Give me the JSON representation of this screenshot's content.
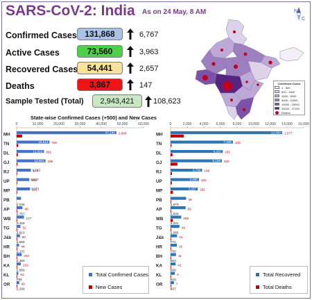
{
  "header": {
    "title": "SARS-CoV-2: India",
    "as_of": "As on 24 May, 8 AM",
    "compass_letters": [
      "N",
      "C"
    ]
  },
  "stats": [
    {
      "label": "Confirmed Cases",
      "value": "131,868",
      "new": "6,767",
      "color": "#a9c3e8"
    },
    {
      "label": "Active Cases",
      "value": "73,560",
      "new": "3,963",
      "color": "#4fd04a"
    },
    {
      "label": "Recovered Cases",
      "value": "54,441",
      "new": "2,657",
      "color": "#f9e29a"
    },
    {
      "label": "Deaths",
      "value": "3,867",
      "new": "147",
      "color": "#f01414"
    }
  ],
  "sample": {
    "label": "Sample Tested (Total)",
    "value": "2,943,421",
    "new": "108,623"
  },
  "section_title": "State-wise Confirmed Cases (+500) and New Cases",
  "map_legend": {
    "title": "Confirmed Cases",
    "items": [
      {
        "label": "1 - 500",
        "color": "#f3eef8"
      },
      {
        "label": "500 - 1500",
        "color": "#dcd2ea"
      },
      {
        "label": "1500 - 5000",
        "color": "#bda9d6"
      },
      {
        "label": "5000 - 10000",
        "color": "#9d7fc0"
      },
      {
        "label": "10000 - 20000",
        "color": "#7c52a8"
      },
      {
        "label": "20000 - 47190",
        "color": "#56237f"
      }
    ],
    "deaths_label": "Deaths"
  },
  "chart_data": [
    {
      "type": "bar",
      "orientation": "horizontal",
      "categories": [
        "MH",
        "TN",
        "DL",
        "GJ",
        "RJ",
        "UP",
        "MP",
        "PB",
        "AP",
        "WB",
        "TG",
        "J&k",
        "HR",
        "BH",
        "KA",
        "KL",
        "OR"
      ],
      "series": [
        {
          "name": "Total Confirmed Cases",
          "color": "#4472c4",
          "values": [
            47190,
            15512,
            12910,
            13664,
            6742,
            6017,
            6371,
            2045,
            2757,
            3459,
            1813,
            1569,
            1131,
            2380,
            1959,
            795,
            1269
          ]
        },
        {
          "name": "New Cases",
          "color": "#c00000",
          "values": [
            2608,
            759,
            591,
            396,
            248,
            262,
            201,
            0,
            48,
            127,
            52,
            80,
            64,
            203,
            216,
            63,
            80
          ]
        }
      ],
      "xlim": [
        0,
        60000
      ],
      "xticks": [
        "0",
        "10,000",
        "20,000",
        "30,000",
        "40,000",
        "50,000",
        "60,000"
      ],
      "axis_position": "top",
      "legend_position": "bottom-right"
    },
    {
      "type": "bar",
      "orientation": "horizontal",
      "categories": [
        "MH",
        "TN",
        "DL",
        "GJ",
        "RJ",
        "UP",
        "MP",
        "PB",
        "AP",
        "WB",
        "TG",
        "J&k",
        "HR",
        "BH",
        "KA",
        "KL",
        "OR"
      ],
      "series": [
        {
          "name": "Total Recovered",
          "color": "#2e75b6",
          "values": [
            13404,
            7495,
            6267,
            6169,
            3786,
            3406,
            3267,
            1870,
            1809,
            1281,
            1065,
            774,
            750,
            653,
            608,
            515,
            407
          ]
        },
        {
          "name": "Total Deaths",
          "color": "#c00000",
          "values": [
            1577,
            103,
            231,
            829,
            168,
            155,
            281,
            39,
            56,
            269,
            49,
            21,
            16,
            11,
            42,
            4,
            7
          ]
        }
      ],
      "xlim": [
        0,
        16000
      ],
      "xticks": [
        "0",
        "2,000",
        "4,000",
        "6,000",
        "8,000",
        "10,000",
        "12,000",
        "14,000",
        "16,000"
      ],
      "axis_position": "top",
      "legend_position": "bottom-right"
    }
  ]
}
